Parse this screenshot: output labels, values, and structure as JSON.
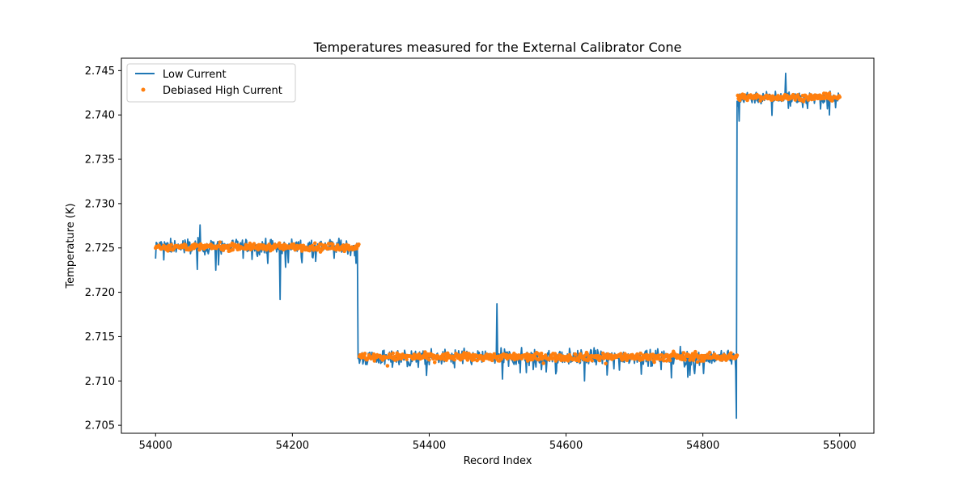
{
  "chart_data": {
    "type": "line",
    "title": "Temperatures measured for the External Calibrator Cone",
    "xlabel": "Record Index",
    "ylabel": "Temperature (K)",
    "xlim": [
      53950,
      55050
    ],
    "ylim": [
      2.7041,
      2.7464
    ],
    "xticks": [
      54000,
      54200,
      54400,
      54600,
      54800,
      55000
    ],
    "yticks": [
      2.705,
      2.71,
      2.715,
      2.72,
      2.725,
      2.73,
      2.735,
      2.74,
      2.745
    ],
    "ytick_labels": [
      "2.705",
      "2.710",
      "2.715",
      "2.720",
      "2.725",
      "2.730",
      "2.735",
      "2.740",
      "2.745"
    ],
    "legend_position": "top-left",
    "grid": false,
    "series": [
      {
        "name": "Low Current",
        "style": "line",
        "color": "#1f77b4",
        "segments": [
          {
            "x_start": 54000,
            "x_end": 54294,
            "level": 2.7252,
            "noise": 0.0007
          },
          {
            "x_start": 54295,
            "x_end": 54849,
            "level": 2.7127,
            "noise": 0.0007
          },
          {
            "x_start": 54850,
            "x_end": 55000,
            "level": 2.742,
            "noise": 0.0006
          }
        ],
        "features": [
          {
            "x": 54000,
            "y": 2.7238
          },
          {
            "x": 54065,
            "y": 2.7276
          },
          {
            "x": 54088,
            "y": 2.7225
          },
          {
            "x": 54182,
            "y": 2.7192
          },
          {
            "x": 54295,
            "y": 2.725
          },
          {
            "x": 54298,
            "y": 2.712
          },
          {
            "x": 54499,
            "y": 2.7187
          },
          {
            "x": 54627,
            "y": 2.71
          },
          {
            "x": 54849,
            "y": 2.7058
          },
          {
            "x": 54851,
            "y": 2.741
          },
          {
            "x": 54853,
            "y": 2.7393
          },
          {
            "x": 54921,
            "y": 2.7447
          },
          {
            "x": 54985,
            "y": 2.74
          }
        ]
      },
      {
        "name": "Debiased High Current",
        "style": "scatter",
        "color": "#ff7f0e",
        "segments": [
          {
            "x_start": 54000,
            "x_end": 54297,
            "level": 2.7251,
            "noise": 0.00018
          },
          {
            "x_start": 54298,
            "x_end": 54850,
            "level": 2.7127,
            "noise": 0.00022
          },
          {
            "x_start": 54851,
            "x_end": 55000,
            "level": 2.742,
            "noise": 0.00018
          }
        ]
      }
    ]
  }
}
